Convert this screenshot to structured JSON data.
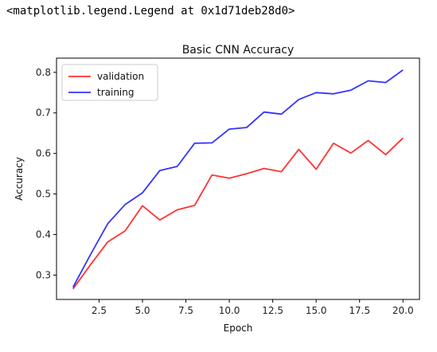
{
  "output_text": "<matplotlib.legend.Legend at 0x1d71deb28d0>",
  "chart_data": {
    "type": "line",
    "title": "Basic CNN Accuracy",
    "xlabel": "Epoch",
    "ylabel": "Accuracy",
    "xlim": [
      0.05,
      20.95
    ],
    "ylim": [
      0.24,
      0.835
    ],
    "xticks": [
      2.5,
      5.0,
      7.5,
      10.0,
      12.5,
      15.0,
      17.5,
      20.0
    ],
    "xtick_labels": [
      "2.5",
      "5.0",
      "7.5",
      "10.0",
      "12.5",
      "15.0",
      "17.5",
      "20.0"
    ],
    "yticks": [
      0.3,
      0.4,
      0.5,
      0.6,
      0.7,
      0.8
    ],
    "ytick_labels": [
      "0.3",
      "0.4",
      "0.5",
      "0.6",
      "0.7",
      "0.8"
    ],
    "grid": false,
    "legend_position": "upper-left",
    "x": [
      1,
      2,
      3,
      4,
      5,
      6,
      7,
      8,
      9,
      10,
      11,
      12,
      13,
      14,
      15,
      16,
      17,
      18,
      19,
      20
    ],
    "series": [
      {
        "name": "validation",
        "color": "#ff3333",
        "values": [
          0.266,
          0.325,
          0.382,
          0.409,
          0.471,
          0.436,
          0.461,
          0.472,
          0.547,
          0.539,
          0.55,
          0.563,
          0.555,
          0.61,
          0.561,
          0.625,
          0.601,
          0.632,
          0.597,
          0.638
        ]
      },
      {
        "name": "training",
        "color": "#3333ff",
        "values": [
          0.27,
          0.35,
          0.427,
          0.474,
          0.503,
          0.558,
          0.568,
          0.625,
          0.626,
          0.66,
          0.664,
          0.702,
          0.697,
          0.733,
          0.75,
          0.747,
          0.756,
          0.779,
          0.775,
          0.806
        ]
      }
    ]
  }
}
